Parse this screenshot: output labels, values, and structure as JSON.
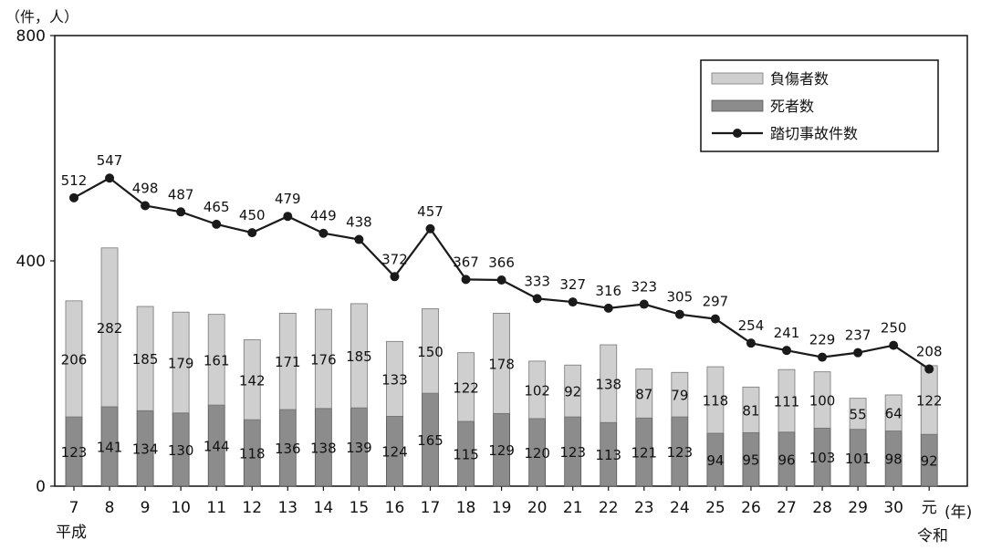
{
  "chart_data": {
    "type": "bar",
    "y_unit_label": "（件，人）",
    "x_unit_label": "(年)",
    "era_labels": {
      "heisei": "平成",
      "reiwa": "令和"
    },
    "categories": [
      "7",
      "8",
      "9",
      "10",
      "11",
      "12",
      "13",
      "14",
      "15",
      "16",
      "17",
      "18",
      "19",
      "20",
      "21",
      "22",
      "23",
      "24",
      "25",
      "26",
      "27",
      "28",
      "29",
      "30",
      "元"
    ],
    "ylim": [
      0,
      800
    ],
    "yticks": [
      "0",
      "400",
      "800"
    ],
    "series": [
      {
        "name": "死者数",
        "kind": "stacked-bar-bottom",
        "color": "#8c8c8c",
        "values": [
          123,
          141,
          134,
          130,
          144,
          118,
          136,
          138,
          139,
          124,
          165,
          115,
          129,
          120,
          123,
          113,
          121,
          123,
          94,
          95,
          96,
          103,
          101,
          98,
          92
        ]
      },
      {
        "name": "負傷者数",
        "kind": "stacked-bar-top",
        "color": "#cfcfcf",
        "values": [
          206,
          282,
          185,
          179,
          161,
          142,
          171,
          176,
          185,
          133,
          150,
          122,
          178,
          102,
          92,
          138,
          87,
          79,
          118,
          81,
          111,
          100,
          55,
          64,
          122
        ]
      },
      {
        "name": "踏切事故件数",
        "kind": "line",
        "color": "#1a1a1a",
        "values": [
          512,
          547,
          498,
          487,
          465,
          450,
          479,
          449,
          438,
          372,
          457,
          367,
          366,
          333,
          327,
          316,
          323,
          305,
          297,
          254,
          241,
          229,
          237,
          250,
          208
        ]
      }
    ],
    "legend": {
      "placement": "top-right",
      "entries": [
        "負傷者数",
        "死者数",
        "踏切事故件数"
      ]
    },
    "grid": false
  }
}
